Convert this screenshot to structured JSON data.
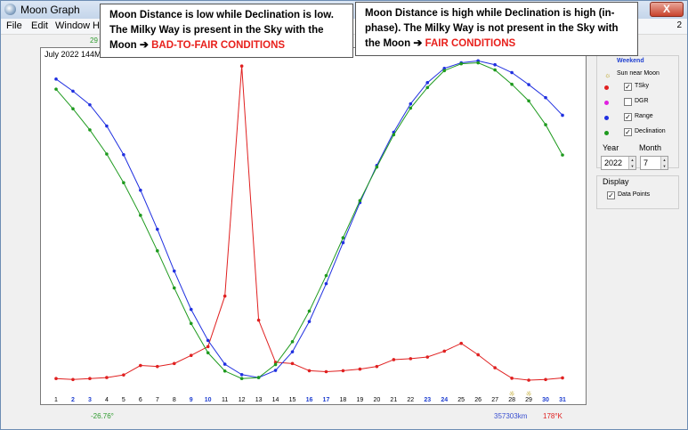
{
  "window": {
    "title": "Moon Graph",
    "close_label": "X"
  },
  "menu": [
    "File",
    "Edit",
    "Window",
    "He"
  ],
  "top_right_text": "2",
  "top_left_value": "29",
  "chart_header": "July 2022 144MH",
  "annotations": {
    "left": {
      "text": "Moon Distance is low while Declination is low. The Milky Way is present in the Sky with the Moon",
      "arrow": "➔",
      "condition": "BAD-TO-FAIR CONDITIONS"
    },
    "right": {
      "text": "Moon Distance is high while Declination is high (in-phase). The Milky Way is not present in the Sky with the Moon",
      "arrow": "➔",
      "condition": "FAIR CONDITIONS"
    }
  },
  "legend": {
    "weekend_label": "Weekend",
    "items": [
      {
        "label": "Sun near Moon",
        "color": "#b39600",
        "checkbox": false,
        "icon": "sun-icon"
      },
      {
        "label": "TSky",
        "color": "#e02020",
        "checkbox": true,
        "checked": true
      },
      {
        "label": "DGR",
        "color": "#e020e0",
        "checkbox": true,
        "checked": false
      },
      {
        "label": "Range",
        "color": "#2030e0",
        "checkbox": true,
        "checked": true
      },
      {
        "label": "Declination",
        "color": "#1e9a1e",
        "checkbox": true,
        "checked": true
      }
    ]
  },
  "controls": {
    "year_label": "Year",
    "month_label": "Month",
    "year_value": "2022",
    "month_value": "7",
    "display_label": "Display",
    "data_points_label": "Data Points",
    "data_points_checked": true
  },
  "footer": {
    "declination_min": "-26.76°",
    "range_max": "357303km",
    "tsky_max": "178°K"
  },
  "chart_data": {
    "type": "line",
    "x": [
      1,
      2,
      3,
      4,
      5,
      6,
      7,
      8,
      9,
      10,
      11,
      12,
      13,
      14,
      15,
      16,
      17,
      18,
      19,
      20,
      21,
      22,
      23,
      24,
      25,
      26,
      27,
      28,
      29,
      30,
      31
    ],
    "weekend_days": [
      2,
      3,
      9,
      10,
      16,
      17,
      23,
      24,
      30,
      31
    ],
    "sun_near_moon_days": [
      28,
      29
    ],
    "x_tick_labels": [
      "1",
      "2",
      "3",
      "4",
      "5",
      "6",
      "7",
      "8",
      "9",
      "10",
      "11",
      "12",
      "13",
      "14",
      "15",
      "16",
      "17",
      "18",
      "19",
      "20",
      "21",
      "22",
      "23",
      "24",
      "25",
      "26",
      "27",
      "28",
      "29",
      "30",
      "31"
    ],
    "ylim": [
      0,
      100
    ],
    "grid": false,
    "series": [
      {
        "name": "TSky",
        "color": "#e02020",
        "values": [
          3.5,
          3.2,
          3.5,
          3.8,
          4.6,
          7.5,
          7.2,
          8.1,
          10.6,
          13.3,
          28.8,
          99.4,
          21.4,
          8.5,
          8.1,
          5.9,
          5.6,
          5.9,
          6.4,
          7.2,
          9.3,
          9.6,
          10.1,
          11.9,
          14.3,
          10.8,
          6.8,
          3.6,
          3.0,
          3.2,
          3.7
        ]
      },
      {
        "name": "Range",
        "color": "#2030e0",
        "values": [
          95.4,
          91.7,
          87.5,
          81.0,
          72.2,
          61.3,
          49.3,
          36.5,
          24.7,
          15.2,
          7.9,
          4.7,
          3.8,
          6.0,
          11.7,
          21.0,
          32.6,
          45.2,
          57.5,
          68.9,
          79.1,
          87.8,
          94.3,
          98.7,
          100.4,
          101.0,
          99.8,
          97.4,
          93.7,
          89.7,
          84.3
        ]
      },
      {
        "name": "Declination",
        "color": "#1e9a1e",
        "values": [
          92.3,
          86.3,
          79.8,
          72.4,
          63.6,
          53.6,
          42.7,
          31.3,
          20.4,
          11.4,
          5.8,
          3.5,
          3.8,
          7.8,
          14.8,
          24.2,
          35.1,
          46.7,
          58.1,
          68.4,
          78.3,
          86.5,
          92.8,
          98.0,
          100.1,
          100.4,
          98.2,
          93.8,
          88.7,
          81.4,
          72.1
        ]
      }
    ]
  }
}
